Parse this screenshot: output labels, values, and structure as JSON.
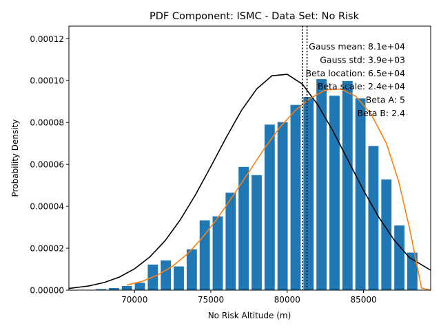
{
  "chart_data": {
    "type": "bar",
    "title": "PDF Component: ISMC - Data Set: No Risk",
    "xlabel": "No Risk Altitude (m)",
    "ylabel": "Probability Density",
    "xlim": [
      65700,
      89400
    ],
    "ylim": [
      0,
      0.000126
    ],
    "x_ticks": [
      {
        "value": 70000,
        "label": "70000"
      },
      {
        "value": 75000,
        "label": "75000"
      },
      {
        "value": 80000,
        "label": "80000"
      },
      {
        "value": 85000,
        "label": "85000"
      }
    ],
    "y_ticks": [
      {
        "value": 0,
        "label": "0.00000"
      },
      {
        "value": 2e-05,
        "label": "0.00002"
      },
      {
        "value": 4e-05,
        "label": "0.00004"
      },
      {
        "value": 6e-05,
        "label": "0.00006"
      },
      {
        "value": 8e-05,
        "label": "0.00008"
      },
      {
        "value": 0.0001,
        "label": "0.00010"
      },
      {
        "value": 0.00012,
        "label": "0.00012"
      }
    ],
    "bar_width": 670,
    "bars": [
      {
        "x": 67800,
        "y": 5e-07
      },
      {
        "x": 68650,
        "y": 1e-06
      },
      {
        "x": 69500,
        "y": 2e-06
      },
      {
        "x": 70350,
        "y": 3.5e-06
      },
      {
        "x": 71200,
        "y": 1.22e-05
      },
      {
        "x": 72050,
        "y": 1.42e-05
      },
      {
        "x": 72900,
        "y": 1.13e-05
      },
      {
        "x": 73750,
        "y": 1.95e-05
      },
      {
        "x": 74600,
        "y": 3.33e-05
      },
      {
        "x": 75450,
        "y": 3.52e-05
      },
      {
        "x": 76300,
        "y": 4.65e-05
      },
      {
        "x": 77150,
        "y": 5.88e-05
      },
      {
        "x": 78000,
        "y": 5.49e-05
      },
      {
        "x": 78850,
        "y": 7.9e-05
      },
      {
        "x": 79700,
        "y": 8.02e-05
      },
      {
        "x": 80550,
        "y": 8.84e-05
      },
      {
        "x": 81400,
        "y": 9.22e-05
      },
      {
        "x": 82250,
        "y": 0.0001007
      },
      {
        "x": 83100,
        "y": 9.28e-05
      },
      {
        "x": 83950,
        "y": 9.98e-05
      },
      {
        "x": 84800,
        "y": 9.15e-05
      },
      {
        "x": 85650,
        "y": 6.88e-05
      },
      {
        "x": 86500,
        "y": 5.28e-05
      },
      {
        "x": 87350,
        "y": 3.09e-05
      },
      {
        "x": 88200,
        "y": 1.79e-05
      }
    ],
    "series": [
      {
        "kind": "gauss",
        "color": "#000000",
        "points": [
          {
            "x": 65700,
            "y": 8e-07
          },
          {
            "x": 67000,
            "y": 2e-06
          },
          {
            "x": 68000,
            "y": 3.6e-06
          },
          {
            "x": 69000,
            "y": 6.2e-06
          },
          {
            "x": 70000,
            "y": 1.02e-05
          },
          {
            "x": 71000,
            "y": 1.58e-05
          },
          {
            "x": 72000,
            "y": 2.36e-05
          },
          {
            "x": 73000,
            "y": 3.36e-05
          },
          {
            "x": 74000,
            "y": 4.56e-05
          },
          {
            "x": 75000,
            "y": 5.9e-05
          },
          {
            "x": 76000,
            "y": 7.28e-05
          },
          {
            "x": 77000,
            "y": 8.57e-05
          },
          {
            "x": 78000,
            "y": 9.6e-05
          },
          {
            "x": 79000,
            "y": 0.0001023
          },
          {
            "x": 80000,
            "y": 0.000103
          },
          {
            "x": 81000,
            "y": 9.83e-05
          },
          {
            "x": 82000,
            "y": 8.85e-05
          },
          {
            "x": 83000,
            "y": 7.6e-05
          },
          {
            "x": 84000,
            "y": 6.18e-05
          },
          {
            "x": 85000,
            "y": 4.76e-05
          },
          {
            "x": 86000,
            "y": 3.48e-05
          },
          {
            "x": 87000,
            "y": 2.4e-05
          },
          {
            "x": 88000,
            "y": 1.56e-05
          },
          {
            "x": 89400,
            "y": 9.5e-06
          }
        ]
      },
      {
        "kind": "beta",
        "color": "#ff7f0e",
        "points": [
          {
            "x": 69500,
            "y": 2.4e-06
          },
          {
            "x": 70500,
            "y": 4.2e-06
          },
          {
            "x": 71500,
            "y": 7.2e-06
          },
          {
            "x": 72500,
            "y": 1.15e-05
          },
          {
            "x": 73500,
            "y": 1.75e-05
          },
          {
            "x": 74500,
            "y": 2.55e-05
          },
          {
            "x": 75500,
            "y": 3.5e-05
          },
          {
            "x": 76500,
            "y": 4.55e-05
          },
          {
            "x": 77500,
            "y": 5.65e-05
          },
          {
            "x": 78500,
            "y": 6.75e-05
          },
          {
            "x": 79500,
            "y": 7.75e-05
          },
          {
            "x": 80500,
            "y": 8.55e-05
          },
          {
            "x": 81500,
            "y": 9.15e-05
          },
          {
            "x": 82500,
            "y": 9.55e-05
          },
          {
            "x": 83500,
            "y": 9.6e-05
          },
          {
            "x": 84500,
            "y": 9.25e-05
          },
          {
            "x": 85500,
            "y": 8.4e-05
          },
          {
            "x": 86500,
            "y": 7e-05
          },
          {
            "x": 87300,
            "y": 5.2e-05
          },
          {
            "x": 88000,
            "y": 3e-05
          },
          {
            "x": 88500,
            "y": 1.2e-05
          },
          {
            "x": 88800,
            "y": 1e-06
          },
          {
            "x": 89400,
            "y": 0.0
          }
        ]
      }
    ],
    "vlines": [
      {
        "x": 81000,
        "style": "dotted",
        "color": "#000000"
      },
      {
        "x": 81300,
        "style": "dotted",
        "color": "#000000"
      }
    ],
    "annotations": [
      "Gauss mean: 8.1e+04",
      "Gauss std: 3.9e+03",
      "Beta location: 6.5e+04",
      "Beta scale: 2.4e+04",
      "Beta A: 5",
      "Beta B: 2.4"
    ],
    "bar_color": "#1f77b4",
    "grid": false,
    "legend": "none"
  }
}
